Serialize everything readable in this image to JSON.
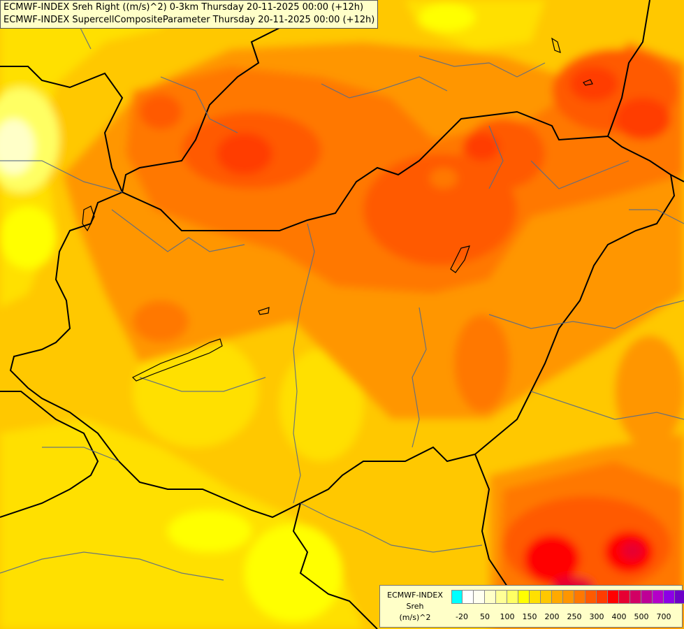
{
  "titles": {
    "line1": "ECMWF-INDEX Sreh Right ((m/s)^2) 0-3km Thursday 20-11-2025 00:00 (+12h)",
    "line2": "ECMWF-INDEX SupercellCompositeParameter Thursday 20-11-2025 00:00 (+12h)"
  },
  "legend": {
    "source": "ECMWF-INDEX",
    "variable": "Sreh",
    "unit": "(m/s)^2",
    "colors": [
      "#00ffff",
      "#ffffff",
      "#fffff0",
      "#ffffc8",
      "#ffff96",
      "#ffff64",
      "#ffff00",
      "#ffe000",
      "#ffc800",
      "#ffaa00",
      "#ff9600",
      "#ff7800",
      "#ff5a00",
      "#ff3c00",
      "#ff0000",
      "#e60032",
      "#d20064",
      "#be0096",
      "#b400c8",
      "#8c00e6",
      "#6e00c8",
      "#4600aa",
      "#000080"
    ],
    "ticks": [
      "-20",
      "50",
      "100",
      "150",
      "200",
      "250",
      "300",
      "400",
      "500",
      "700"
    ]
  }
}
